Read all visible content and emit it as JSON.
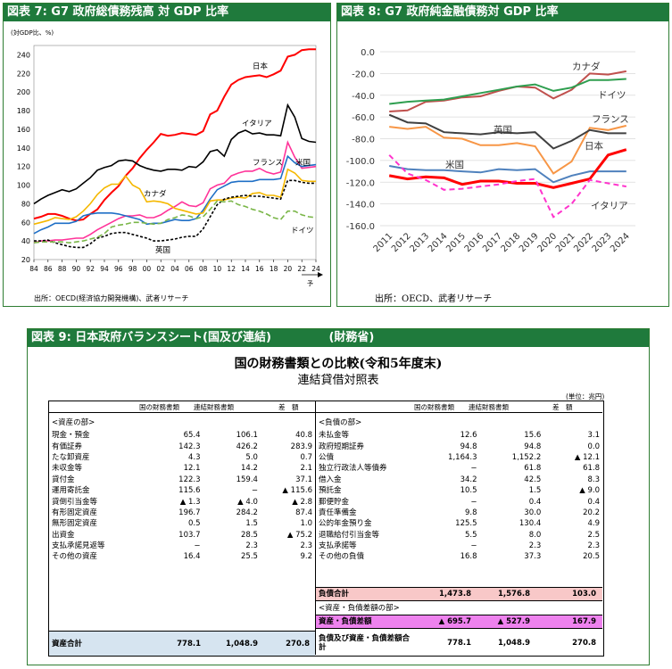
{
  "fig7": {
    "header": "図表 7: G7 政府総債務残高 対 GDP 比率",
    "yunit": "(対GDP比、%)",
    "source": "出所：OECD(経済協力開発機構)、武者リサーチ",
    "arrow_label": "予",
    "chart_data": {
      "type": "line",
      "x": [
        84,
        85,
        86,
        87,
        88,
        89,
        90,
        91,
        92,
        93,
        94,
        95,
        96,
        97,
        98,
        99,
        0,
        1,
        2,
        3,
        4,
        5,
        6,
        7,
        8,
        9,
        10,
        11,
        12,
        13,
        14,
        15,
        16,
        17,
        18,
        19,
        20,
        21,
        22,
        23,
        24
      ],
      "xticks": [
        "84",
        "86",
        "88",
        "90",
        "92",
        "94",
        "96",
        "98",
        "00",
        "02",
        "04",
        "06",
        "08",
        "10",
        "12",
        "14",
        "16",
        "18",
        "20",
        "22",
        "24"
      ],
      "ylim": [
        20,
        250
      ],
      "yticks": [
        20,
        40,
        60,
        80,
        100,
        120,
        140,
        160,
        180,
        200,
        220,
        240
      ],
      "series": [
        {
          "name": "日本",
          "color": "#ff0000",
          "dash": "",
          "values": [
            64,
            66,
            69,
            69,
            67,
            64,
            62,
            63,
            69,
            74,
            84,
            92,
            99,
            110,
            118,
            129,
            138,
            146,
            155,
            153,
            154,
            156,
            155,
            154,
            158,
            176,
            180,
            195,
            208,
            213,
            216,
            217,
            218,
            216,
            219,
            223,
            238,
            240,
            245,
            246,
            246
          ]
        },
        {
          "name": "イタリア",
          "color": "#000000",
          "dash": "",
          "values": [
            80,
            85,
            89,
            92,
            95,
            93,
            96,
            102,
            108,
            116,
            119,
            121,
            126,
            127,
            126,
            121,
            118,
            116,
            115,
            117,
            117,
            116,
            120,
            119,
            125,
            136,
            138,
            131,
            149,
            156,
            159,
            155,
            156,
            154,
            154,
            153,
            186,
            173,
            150,
            147,
            146
          ]
        },
        {
          "name": "フランス",
          "color": "#ff3399",
          "dash": "",
          "values": [
            38,
            40,
            40,
            41,
            41,
            42,
            43,
            43,
            47,
            52,
            56,
            60,
            64,
            67,
            67,
            68,
            65,
            65,
            68,
            73,
            77,
            82,
            78,
            77,
            81,
            96,
            100,
            102,
            110,
            113,
            115,
            115,
            118,
            114,
            112,
            114,
            146,
            130,
            118,
            119,
            120
          ]
        },
        {
          "name": "米国",
          "color": "#1f6fc6",
          "dash": "",
          "values": [
            48,
            52,
            55,
            59,
            59,
            59,
            61,
            67,
            69,
            70,
            70,
            70,
            69,
            67,
            65,
            63,
            58,
            59,
            59,
            61,
            63,
            62,
            62,
            64,
            73,
            85,
            95,
            99,
            103,
            104,
            104,
            104,
            106,
            106,
            106,
            107,
            131,
            124,
            120,
            121,
            122
          ]
        },
        {
          "name": "カナダ",
          "color": "#f5b800",
          "dash": "",
          "values": [
            58,
            60,
            62,
            65,
            64,
            63,
            66,
            72,
            80,
            90,
            97,
            101,
            101,
            110,
            100,
            96,
            82,
            83,
            82,
            80,
            75,
            73,
            71,
            69,
            70,
            83,
            84,
            84,
            86,
            87,
            86,
            91,
            92,
            89,
            89,
            87,
            117,
            113,
            105,
            104,
            104
          ]
        },
        {
          "name": "英国",
          "color": "#000000",
          "dash": "3,2",
          "values": [
            40,
            40,
            41,
            38,
            36,
            34,
            33,
            33,
            37,
            43,
            45,
            48,
            49,
            49,
            47,
            45,
            43,
            40,
            40,
            41,
            42,
            44,
            45,
            45,
            53,
            66,
            79,
            85,
            87,
            88,
            89,
            88,
            88,
            87,
            86,
            85,
            105,
            105,
            103,
            102,
            102
          ]
        },
        {
          "name": "ドイツ",
          "color": "#7ab648",
          "dash": "6,3",
          "values": [
            38,
            39,
            39,
            39,
            39,
            38,
            39,
            40,
            42,
            44,
            48,
            55,
            57,
            58,
            60,
            60,
            59,
            58,
            59,
            63,
            65,
            68,
            67,
            64,
            66,
            74,
            83,
            82,
            83,
            79,
            77,
            74,
            72,
            69,
            65,
            63,
            72,
            72,
            68,
            66,
            65
          ]
        }
      ]
    }
  },
  "fig8": {
    "header": "図表 8: G7 政府純金融債務対 GDP 比率",
    "source": "出所：OECD、武者リサーチ",
    "chart_data": {
      "type": "line",
      "x": [
        "2011",
        "2012",
        "2013",
        "2014",
        "2015",
        "2016",
        "2017",
        "2018",
        "2019",
        "2020",
        "2021",
        "2022",
        "2023",
        "2024"
      ],
      "ylim": [
        -160,
        0
      ],
      "yticks": [
        "0.0",
        "-20.0",
        "-40.0",
        "-60.0",
        "-80.0",
        "-100.0",
        "-120.0",
        "-140.0",
        "-160.0"
      ],
      "series": [
        {
          "name": "カナダ",
          "color": "#c0504d",
          "dash": "",
          "values": [
            -55,
            -54,
            -46,
            -45,
            -42,
            -41,
            -36,
            -32,
            -33,
            -43,
            -35,
            -20,
            -21,
            -18
          ]
        },
        {
          "name": "ドイツ",
          "color": "#2e9e4f",
          "dash": "",
          "values": [
            -48,
            -46,
            -45,
            -44,
            -41,
            -38,
            -35,
            -32,
            -30,
            -36,
            -33,
            -26,
            -26,
            -25
          ]
        },
        {
          "name": "フランス",
          "color": "#f79646",
          "dash": "",
          "values": [
            -69,
            -71,
            -69,
            -79,
            -80,
            -86,
            -86,
            -84,
            -87,
            -112,
            -101,
            -70,
            -72,
            -68
          ]
        },
        {
          "name": "英国",
          "color": "#404040",
          "dash": "",
          "values": [
            -58,
            -65,
            -66,
            -74,
            -75,
            -76,
            -74,
            -75,
            -74,
            -89,
            -82,
            -72,
            -75,
            -75
          ]
        },
        {
          "name": "米国",
          "color": "#4f81bd",
          "dash": "",
          "values": [
            -105,
            -108,
            -109,
            -109,
            -110,
            -111,
            -108,
            -109,
            -108,
            -120,
            -114,
            -110,
            -110,
            -110
          ]
        },
        {
          "name": "日本",
          "color": "#ff0000",
          "dash": "",
          "values": [
            -114,
            -117,
            -115,
            -116,
            -122,
            -119,
            -119,
            -121,
            -121,
            -125,
            -121,
            -117,
            -95,
            -90
          ]
        },
        {
          "name": "イタリア",
          "color": "#ff33cc",
          "dash": "6,4",
          "values": [
            -95,
            -112,
            -118,
            -127,
            -126,
            -124,
            -122,
            -119,
            -117,
            -152,
            -140,
            -118,
            -121,
            -124
          ]
        }
      ]
    }
  },
  "fig9": {
    "header": "図表 9: 日本政府バランスシート(国及び連結)",
    "header_right": "(財務省)",
    "title": "国の財務書類との比較(令和5年度末)",
    "subtitle": "連結貸借対照表",
    "unit": "(単位：兆円)",
    "col_headers": [
      "国の財務書類",
      "連結財務書類",
      "差　額"
    ],
    "assets_label": "<資産の部>",
    "liab_label": "<負債の部>",
    "net_label": "<資産・負債差額の部>",
    "assets": [
      [
        "現金・預金",
        "65.4",
        "106.1",
        "40.8"
      ],
      [
        "有価証券",
        "142.3",
        "426.2",
        "283.9"
      ],
      [
        "たな卸資産",
        "4.3",
        "5.0",
        "0.7"
      ],
      [
        "未収金等",
        "12.1",
        "14.2",
        "2.1"
      ],
      [
        "貸付金",
        "122.3",
        "159.4",
        "37.1"
      ],
      [
        "運用寄託金",
        "115.6",
        "−",
        "▲ 115.6"
      ],
      [
        "貸倒引当金等",
        "▲ 1.3",
        "▲ 4.0",
        "▲ 2.8"
      ],
      [
        "有形固定資産",
        "196.7",
        "284.2",
        "87.4"
      ],
      [
        "無形固定資産",
        "0.5",
        "1.5",
        "1.0"
      ],
      [
        "出資金",
        "103.7",
        "28.5",
        "▲ 75.2"
      ],
      [
        "支払承諾見返等",
        "−",
        "2.3",
        "2.3"
      ],
      [
        "その他の資産",
        "16.4",
        "25.5",
        "9.2"
      ]
    ],
    "liabilities": [
      [
        "未払金等",
        "12.6",
        "15.6",
        "3.1"
      ],
      [
        "政府短期証券",
        "94.8",
        "94.8",
        "0.0"
      ],
      [
        "公債",
        "1,164.3",
        "1,152.2",
        "▲ 12.1"
      ],
      [
        "独立行政法人等債券",
        "−",
        "61.8",
        "61.8"
      ],
      [
        "借入金",
        "34.2",
        "42.5",
        "8.3"
      ],
      [
        "預託金",
        "10.5",
        "1.5",
        "▲ 9.0"
      ],
      [
        "郵便貯金",
        "−",
        "0.4",
        "0.4"
      ],
      [
        "責任準備金",
        "9.8",
        "30.0",
        "20.2"
      ],
      [
        "公的年金預り金",
        "125.5",
        "130.4",
        "4.9"
      ],
      [
        "退職給付引当金等",
        "5.5",
        "8.0",
        "2.5"
      ],
      [
        "支払承諾等",
        "−",
        "2.3",
        "2.3"
      ],
      [
        "その他の負債",
        "16.8",
        "37.3",
        "20.5"
      ]
    ],
    "liab_total": [
      "負債合計",
      "1,473.8",
      "1,576.8",
      "103.0"
    ],
    "net_row": [
      "資産・負債差額",
      "▲ 695.7",
      "▲ 527.9",
      "167.9"
    ],
    "asset_total": [
      "資産合計",
      "778.1",
      "1,048.9",
      "270.8"
    ],
    "grand_total": [
      "負債及び資産・負債差額合計",
      "778.1",
      "1,048.9",
      "270.8"
    ],
    "colors": {
      "liab_total_bg": "#f8c8c8",
      "net_bg": "#ee82ee",
      "asset_total_bg": "#d6e4f0",
      "header_green": "#1f7a3c"
    }
  }
}
